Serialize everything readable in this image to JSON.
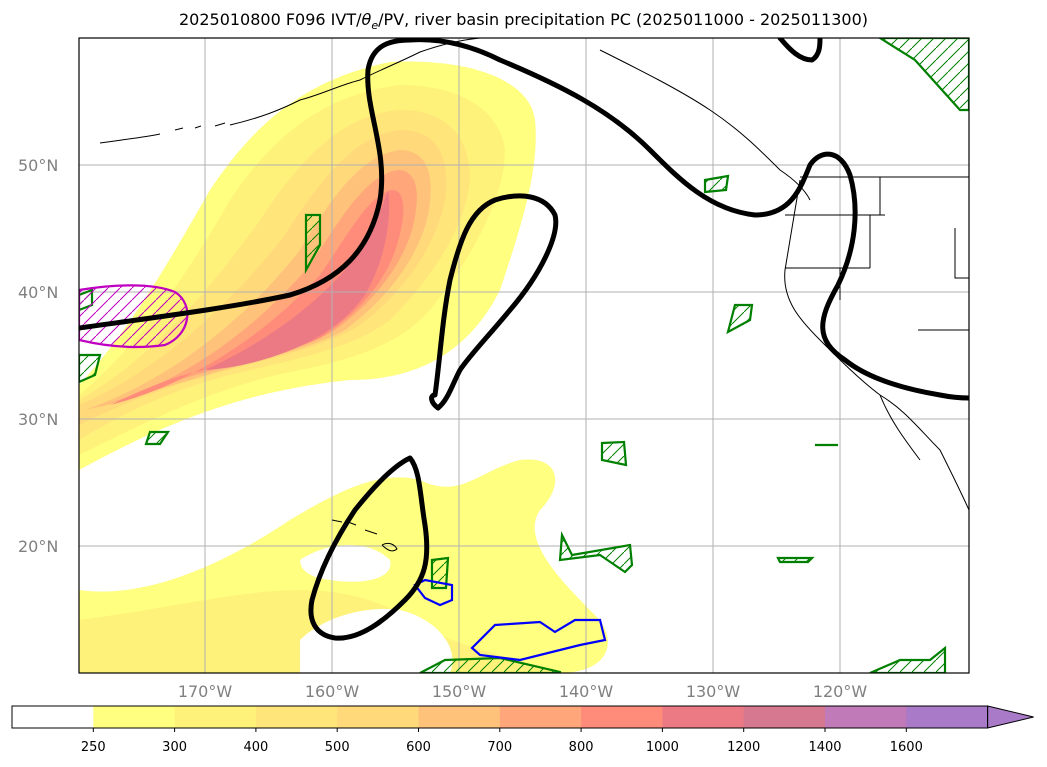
{
  "title": {
    "prefix": "2025010800 F096 IVT/",
    "theta": "θ",
    "theta_sub": "e",
    "suffix": "/PV, river basin precipitation PC (2025011000 - 2025011300)"
  },
  "lat_labels": [
    "50°N",
    "40°N",
    "30°N",
    "20°N"
  ],
  "lon_labels": [
    "170°W",
    "160°W",
    "150°W",
    "140°W",
    "130°W",
    "120°W"
  ],
  "colorbar": {
    "ticks": [
      "250",
      "300",
      "400",
      "500",
      "600",
      "700",
      "800",
      "1000",
      "1200",
      "1400",
      "1600"
    ],
    "colors": [
      "#ffffff",
      "#ffff80",
      "#fff27a",
      "#ffe57a",
      "#ffd97a",
      "#ffc27a",
      "#ffa67a",
      "#ff8c7a",
      "#eb7a85",
      "#d6788f",
      "#c07ab8",
      "#a87ac8"
    ]
  },
  "colors": {
    "pv_positive": "#008000",
    "pv_negative": "#0000ff",
    "magenta": "#c000c0",
    "theta_contour": "#000000"
  }
}
